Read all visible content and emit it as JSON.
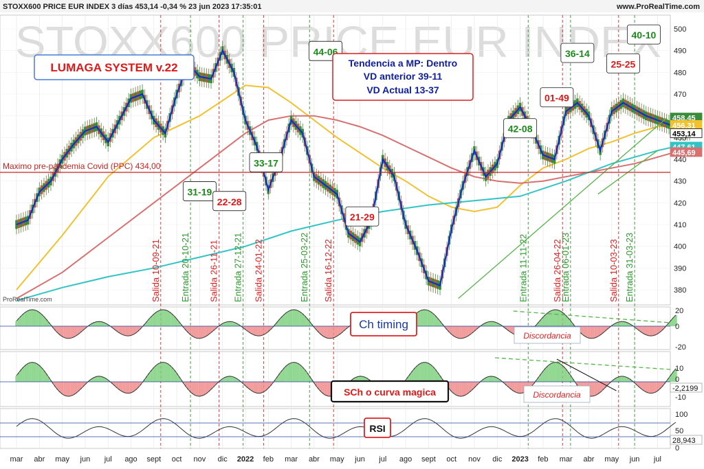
{
  "header": {
    "title": "STOXX600 PRICE EUR INDEX 3 días 453,14 -0,34 % 23 jun 2023 17:35:01",
    "source": "www.ProRealTime.com",
    "watermark": "STOXX600 PRICE EUR INDEX",
    "logo": "ProRealTime.com"
  },
  "colors": {
    "price_bull": "#3a8c3a",
    "price_bear": "#b85a3a",
    "wave_line": "#1030c8",
    "ma_yellow": "#f2c12e",
    "ma_red": "#d87070",
    "ma_cyan": "#30c4c4",
    "trend_green": "#55b548",
    "level_red": "#cc2020",
    "entry_green": "#2a9a2a",
    "exit_red": "#e02020",
    "osc_green": "#7fd07f",
    "osc_red": "#f08c8c"
  },
  "boxes": {
    "system": "LUMAGA SYSTEM v.22",
    "trend": [
      "Tendencia a MP: Dentro",
      "VD anterior 39-11",
      "VD Actual 13-37"
    ],
    "covid_level": "Maximo pre-pandemia Covid (PPC)  434,00",
    "ch_timing": "Ch timing",
    "sch": "SCh o curva magica",
    "rsi": "RSI",
    "discordancia_1": "Discordancia",
    "discordancia_2": "Discordancia"
  },
  "score_labels": [
    {
      "text": "31-19",
      "kind": "green",
      "month": 8.0,
      "price": 425.0
    },
    {
      "text": "22-28",
      "kind": "red",
      "month": 9.3,
      "price": 420.5
    },
    {
      "text": "33-17",
      "kind": "green",
      "month": 10.9,
      "price": 438.3
    },
    {
      "text": "44-06",
      "kind": "green",
      "month": 13.5,
      "price": 489.5
    },
    {
      "text": "21-29",
      "kind": "red",
      "month": 15.1,
      "price": 413.4
    },
    {
      "text": "42-08",
      "kind": "green",
      "month": 22.0,
      "price": 454.0
    },
    {
      "text": "01-49",
      "kind": "red",
      "month": 23.6,
      "price": 468.2
    },
    {
      "text": "36-14",
      "kind": "green",
      "month": 24.5,
      "price": 488.6
    },
    {
      "text": "25-25",
      "kind": "red",
      "month": 26.5,
      "price": 483.8
    },
    {
      "text": "40-10",
      "kind": "green",
      "month": 27.4,
      "price": 497.1
    }
  ],
  "signals": [
    {
      "label": "Salida 10-09-21",
      "kind": "exit",
      "month": 6.3
    },
    {
      "label": "Entrada 20-10-21",
      "kind": "entry",
      "month": 7.6
    },
    {
      "label": "Salida 26-11-21",
      "kind": "exit",
      "month": 8.85
    },
    {
      "label": "Entrada 27-12-21",
      "kind": "entry",
      "month": 9.9
    },
    {
      "label": "Salida 24-01-22",
      "kind": "exit",
      "month": 10.8
    },
    {
      "label": "Entrada 25-03-22",
      "kind": "entry",
      "month": 12.8
    },
    {
      "label": "Salida 16-12-22",
      "kind": "exit",
      "month": 13.85
    },
    {
      "label": "Entrada 11-11-22",
      "kind": "entry",
      "month": 22.35
    },
    {
      "label": "Salida 26-04-22",
      "kind": "exit",
      "month": 23.85
    },
    {
      "label": "Entrada 06-01-23",
      "kind": "entry",
      "month": 24.2
    },
    {
      "label": "Salida 10-03-23",
      "kind": "exit",
      "month": 26.3
    },
    {
      "label": "Entrada 31-03-23",
      "kind": "entry",
      "month": 27.0
    }
  ],
  "chart_data": {
    "type": "line",
    "title": "STOXX600 PRICE EUR INDEX 3 días 453,14 -0,34 % 23 jun 2023 17:35:01",
    "x_month_labels": [
      "mar",
      "abr",
      "may",
      "jun",
      "jul",
      "ago",
      "sept",
      "oct",
      "nov",
      "dic",
      "2022",
      "feb",
      "mar",
      "abr",
      "may",
      "jun",
      "jul",
      "ago",
      "sept",
      "oct",
      "nov",
      "dic",
      "2023",
      "feb",
      "mar",
      "abr",
      "may",
      "jun",
      "jul"
    ],
    "ylim": [
      375,
      505
    ],
    "y_ticks": [
      380,
      390,
      400,
      410,
      420,
      430,
      440,
      450,
      460,
      470,
      480,
      490,
      500
    ],
    "horizontal_level": 434.0,
    "price_tags": [
      {
        "value": 458.45,
        "label": "458,45",
        "color": "#3a8c3a"
      },
      {
        "value": 456.31,
        "label": "456,31",
        "color": "#f2c12e"
      },
      {
        "value": 453.14,
        "label": "453,14",
        "color": "#000000"
      },
      {
        "value": 447.61,
        "label": "447,61",
        "color": "#30c4c4"
      },
      {
        "value": 445.69,
        "label": "445,69",
        "color": "#d87070"
      }
    ],
    "series": [
      {
        "key": "price",
        "months": [
          0,
          0.5,
          1,
          1.5,
          2,
          2.5,
          3,
          3.5,
          4,
          4.5,
          5,
          5.5,
          6,
          6.5,
          7,
          7.5,
          8,
          8.5,
          9,
          9.5,
          10,
          10.5,
          11,
          11.5,
          12,
          12.5,
          13,
          13.5,
          14,
          14.5,
          15,
          15.5,
          16,
          16.5,
          17,
          17.5,
          18,
          18.5,
          19,
          19.5,
          20,
          20.5,
          21,
          21.5,
          22,
          22.5,
          23,
          23.5,
          24,
          24.5,
          25,
          25.5,
          26,
          26.5,
          27,
          27.5,
          28,
          28.5,
          29,
          29.5
        ],
        "values": [
          410,
          412,
          425,
          430,
          440,
          447,
          453,
          455,
          448,
          458,
          468,
          470,
          458,
          452,
          470,
          484,
          478,
          477,
          490,
          480,
          458,
          446,
          426,
          440,
          458,
          452,
          432,
          428,
          424,
          406,
          402,
          412,
          440,
          432,
          410,
          398,
          384,
          382,
          408,
          428,
          444,
          432,
          438,
          458,
          464,
          454,
          442,
          440,
          462,
          466,
          460,
          444,
          462,
          466,
          463,
          460,
          458,
          456,
          453,
          453.14
        ]
      },
      {
        "key": "ma_yellow",
        "months": [
          0,
          2,
          4,
          6,
          8,
          10,
          11,
          12,
          13,
          14,
          15,
          16,
          17,
          18,
          19,
          20,
          21,
          22,
          23,
          24,
          25,
          26,
          27,
          28,
          29,
          29.5
        ],
        "values": [
          380,
          405,
          432,
          450,
          460,
          474,
          473,
          466,
          458,
          450,
          443,
          436,
          430,
          423,
          418,
          416,
          418,
          428,
          436,
          440,
          445,
          448,
          452,
          455,
          456,
          456.31
        ]
      },
      {
        "key": "ma_red",
        "months": [
          0,
          2,
          4,
          6,
          8,
          10,
          11,
          12,
          13,
          14,
          15,
          16,
          17,
          18,
          19,
          20,
          21,
          22,
          23,
          24,
          25,
          26,
          27,
          28,
          29,
          29.5
        ],
        "values": [
          376,
          388,
          404,
          420,
          436,
          452,
          458,
          460,
          460,
          458,
          455,
          451,
          446,
          441,
          436,
          432,
          430,
          429,
          430,
          432,
          434,
          436,
          438,
          441,
          444,
          445.69
        ]
      },
      {
        "key": "ma_cyan",
        "months": [
          0,
          2,
          4,
          6,
          8,
          10,
          12,
          14,
          16,
          18,
          20,
          22,
          24,
          26,
          28,
          29.5
        ],
        "values": [
          375,
          381,
          386,
          390,
          395,
          400,
          407,
          412,
          416,
          419,
          421,
          423,
          430,
          438,
          444,
          447.61
        ]
      }
    ]
  },
  "indicators": {
    "ch_timing": {
      "ticks": [
        "20",
        "0",
        "-20"
      ]
    },
    "sch": {
      "ticks": [
        "10",
        "0",
        "-10"
      ],
      "tag": "-2,2199"
    },
    "rsi": {
      "ticks": [
        "100",
        "50",
        "0"
      ],
      "tag": "28,943"
    }
  }
}
